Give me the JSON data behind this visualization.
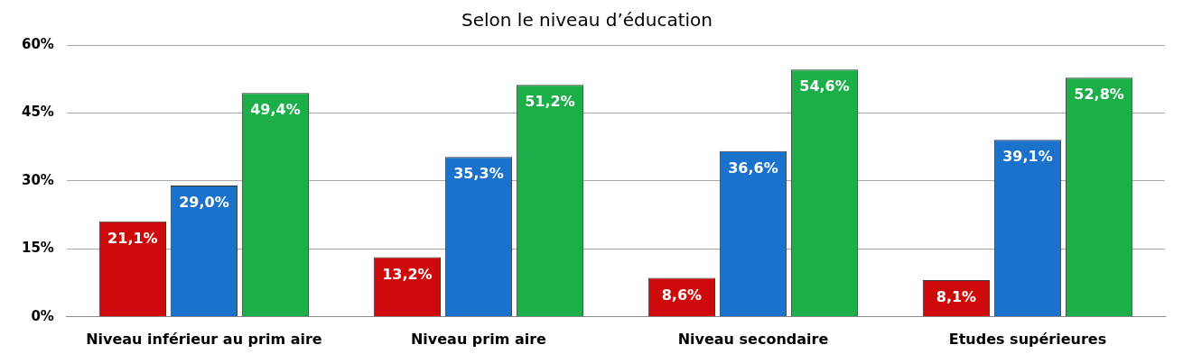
{
  "chart_data": {
    "type": "bar",
    "title": "Selon le niveau d’éducation",
    "categories": [
      "Niveau inférieur au prim aire",
      "Niveau prim aire",
      "Niveau secondaire",
      "Etudes supérieures"
    ],
    "series": [
      {
        "color": "#cc0a0a",
        "values": [
          21.1,
          13.2,
          8.6,
          8.1
        ],
        "value_labels": [
          "21,1%",
          "13,2%",
          "8,6%",
          "8,1%"
        ]
      },
      {
        "color": "#1a72cc",
        "values": [
          29.0,
          35.3,
          36.6,
          39.1
        ],
        "value_labels": [
          "29,0%",
          "35,3%",
          "36,6%",
          "39,1%"
        ]
      },
      {
        "color": "#1cae48",
        "values": [
          49.4,
          51.2,
          54.6,
          52.8
        ],
        "value_labels": [
          "49,4%",
          "51,2%",
          "54,6%",
          "52,8%"
        ]
      }
    ],
    "ylim": [
      0,
      60
    ],
    "yticks": [
      {
        "value": 0,
        "label": "0%"
      },
      {
        "value": 15,
        "label": "15%"
      },
      {
        "value": 30,
        "label": "30%"
      },
      {
        "value": 45,
        "label": "45%"
      },
      {
        "value": 60,
        "label": "60%"
      }
    ],
    "grid": "y",
    "legend": false
  }
}
